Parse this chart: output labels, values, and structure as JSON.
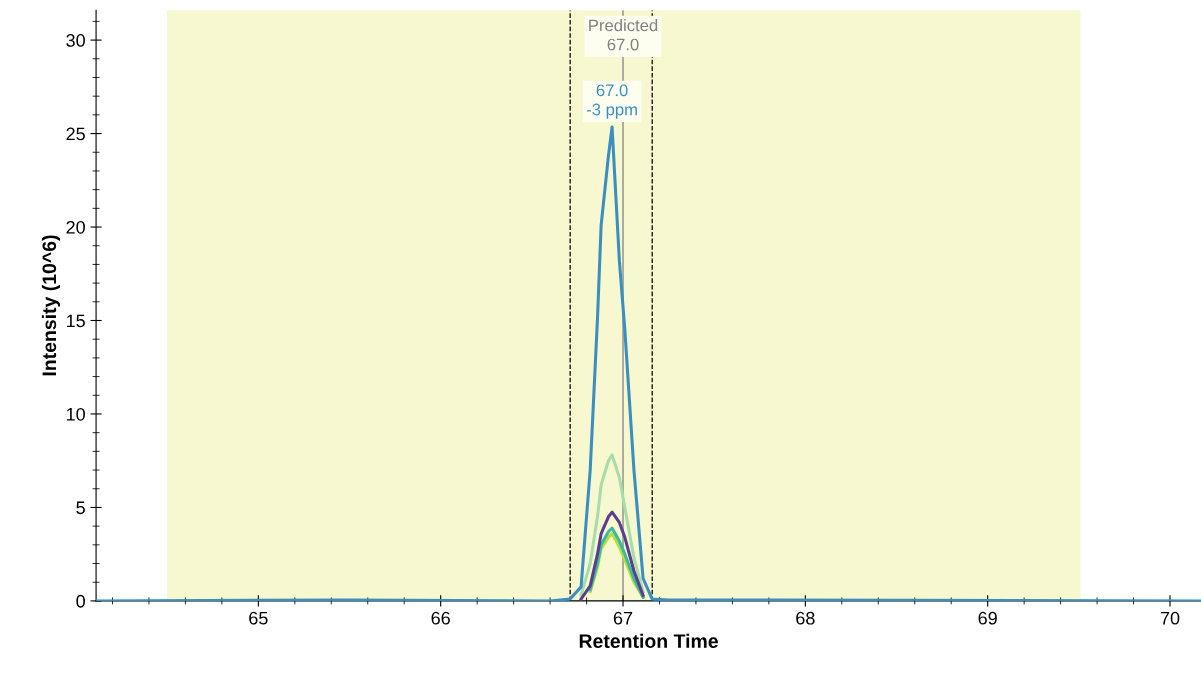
{
  "chart_data": {
    "type": "line",
    "xlabel": "Retention Time",
    "ylabel": "Intensity (10^6)",
    "x": [
      64.11,
      65.5,
      66.6,
      66.71,
      66.77,
      66.82,
      66.86,
      66.88,
      66.92,
      66.94,
      66.98,
      67.01,
      67.06,
      67.11,
      67.16,
      67.25,
      67.8,
      70.17
    ],
    "series": [
      {
        "color": "#a8dca8",
        "x": [
          66.77,
          66.82,
          66.86,
          66.88,
          66.92,
          66.94,
          66.98,
          67.01,
          67.06,
          67.11
        ],
        "values": [
          0.3,
          2,
          4.5,
          6.2,
          7.5,
          7.8,
          6.6,
          5,
          2.3,
          0.5
        ]
      },
      {
        "color": "#b5e03a",
        "x": [
          66.82,
          66.86,
          66.88,
          66.92,
          66.94,
          66.98,
          67.01,
          67.06,
          67.11
        ],
        "values": [
          0.5,
          1.8,
          2.8,
          3.4,
          3.6,
          2.9,
          2.2,
          1,
          0.2
        ]
      },
      {
        "color": "#3bb8a8",
        "x": [
          66.82,
          66.86,
          66.88,
          66.92,
          66.94,
          66.98,
          67.01,
          67.06,
          67.11
        ],
        "values": [
          0.6,
          2,
          3,
          3.7,
          3.9,
          3.2,
          2.5,
          1.2,
          0.2
        ]
      },
      {
        "color": "#5b3f8f",
        "x": [
          66.77,
          66.82,
          66.86,
          66.88,
          66.92,
          66.94,
          66.98,
          67.01,
          67.06,
          67.11
        ],
        "values": [
          0.1,
          0.8,
          2.5,
          3.6,
          4.5,
          4.75,
          4.2,
          3.4,
          1.6,
          0.3
        ]
      },
      {
        "color": "#3a8fc0",
        "values": [
          0,
          0.05,
          0,
          0.1,
          0.75,
          7,
          15.1,
          20.1,
          23.8,
          25.35,
          18.2,
          14.5,
          7,
          1.2,
          0.1,
          0.05,
          0.05,
          0
        ]
      }
    ],
    "xlim": [
      64.11,
      70.17
    ],
    "xticks": [
      65,
      66,
      67,
      68,
      69,
      70
    ],
    "ylim": [
      0,
      31.6
    ],
    "yticks": [
      0,
      5,
      10,
      15,
      20,
      25,
      30
    ],
    "bands": [
      {
        "axis": "x",
        "from": 64.5,
        "to": 69.51,
        "color": "#f7f7d0"
      }
    ],
    "ref_lines": [
      {
        "axis": "x",
        "value": 66.71,
        "line_style": "dashed",
        "color": "#000000"
      },
      {
        "axis": "x",
        "value": 67.16,
        "line_style": "dashed",
        "color": "#000000"
      },
      {
        "axis": "x",
        "value": 67.0,
        "label": "Predicted\n67.0",
        "color": "#808080"
      }
    ],
    "annotations": [
      {
        "text": "67.0\n-3 ppm",
        "x": 66.94,
        "y": 25.35
      }
    ],
    "grid": false,
    "legend": false,
    "marker": "none",
    "line_style": "solid"
  }
}
